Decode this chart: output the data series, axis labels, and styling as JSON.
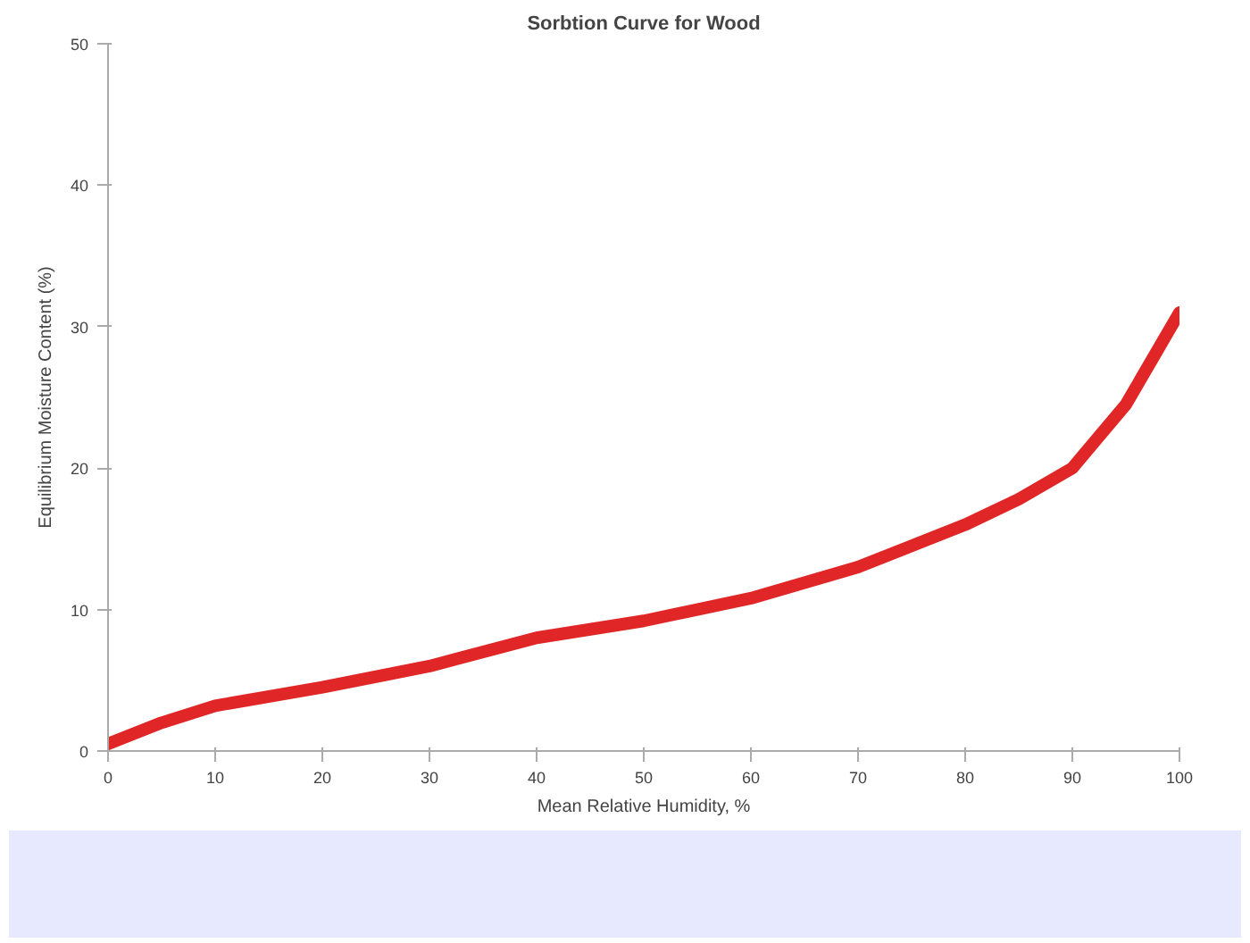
{
  "chart_data": {
    "type": "line",
    "title": "Sorbtion Curve for Wood",
    "xlabel": "Mean Relative Humidity, %",
    "ylabel": "Equilibrium Moisture Content (%)",
    "x": [
      0,
      5,
      10,
      20,
      30,
      40,
      50,
      60,
      70,
      80,
      85,
      90,
      95,
      100
    ],
    "series": [
      {
        "color": "#e02626",
        "values": [
          0.5,
          2,
          3.2,
          4.5,
          6,
          8,
          9.2,
          10.8,
          13,
          16,
          17.8,
          20,
          24.5,
          31
        ]
      }
    ],
    "xlim": [
      0,
      100
    ],
    "xticks": [
      0,
      10,
      20,
      30,
      40,
      50,
      60,
      70,
      80,
      90,
      100
    ],
    "ylim": [
      0,
      50
    ],
    "yticks": [
      0,
      10,
      20,
      30,
      40,
      50
    ],
    "grid": false,
    "marker": "none",
    "line_style": "solid"
  }
}
